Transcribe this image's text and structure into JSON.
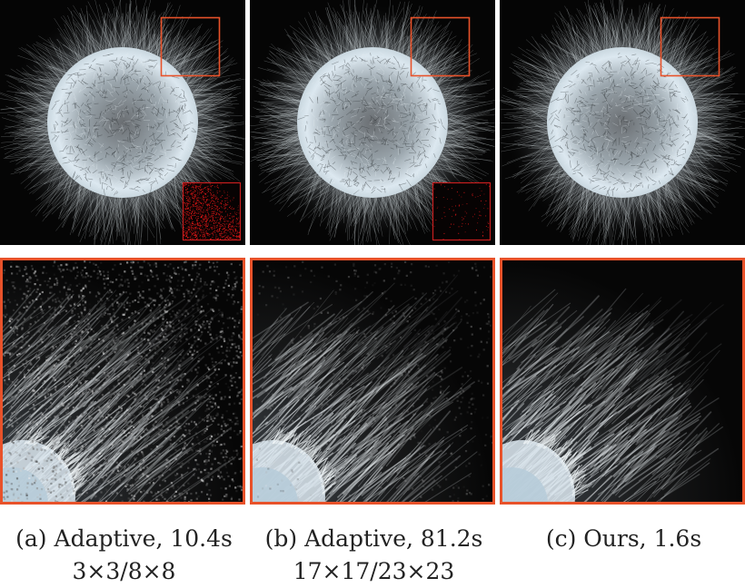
{
  "figure": {
    "panels": [
      {
        "label": "(a)",
        "method": "Adaptive, 10.4s",
        "detail": "3×3/8×8",
        "has_error_inset": true,
        "error_level": "high",
        "zoom_noise": "high"
      },
      {
        "label": "(b)",
        "method": "Adaptive, 81.2s",
        "detail": "17×17/23×23",
        "has_error_inset": true,
        "error_level": "low",
        "zoom_noise": "low"
      },
      {
        "label": "(c)",
        "method": "Ours, 1.6s",
        "detail": "",
        "has_error_inset": false,
        "error_level": "none",
        "zoom_noise": "none"
      }
    ],
    "colors": {
      "highlight_box": "#e8522a",
      "error_inset_border": "#c81e1e",
      "error_pixels": "#ff1a1a",
      "background": "#050505",
      "fur_tint": "#dce8f0"
    }
  }
}
